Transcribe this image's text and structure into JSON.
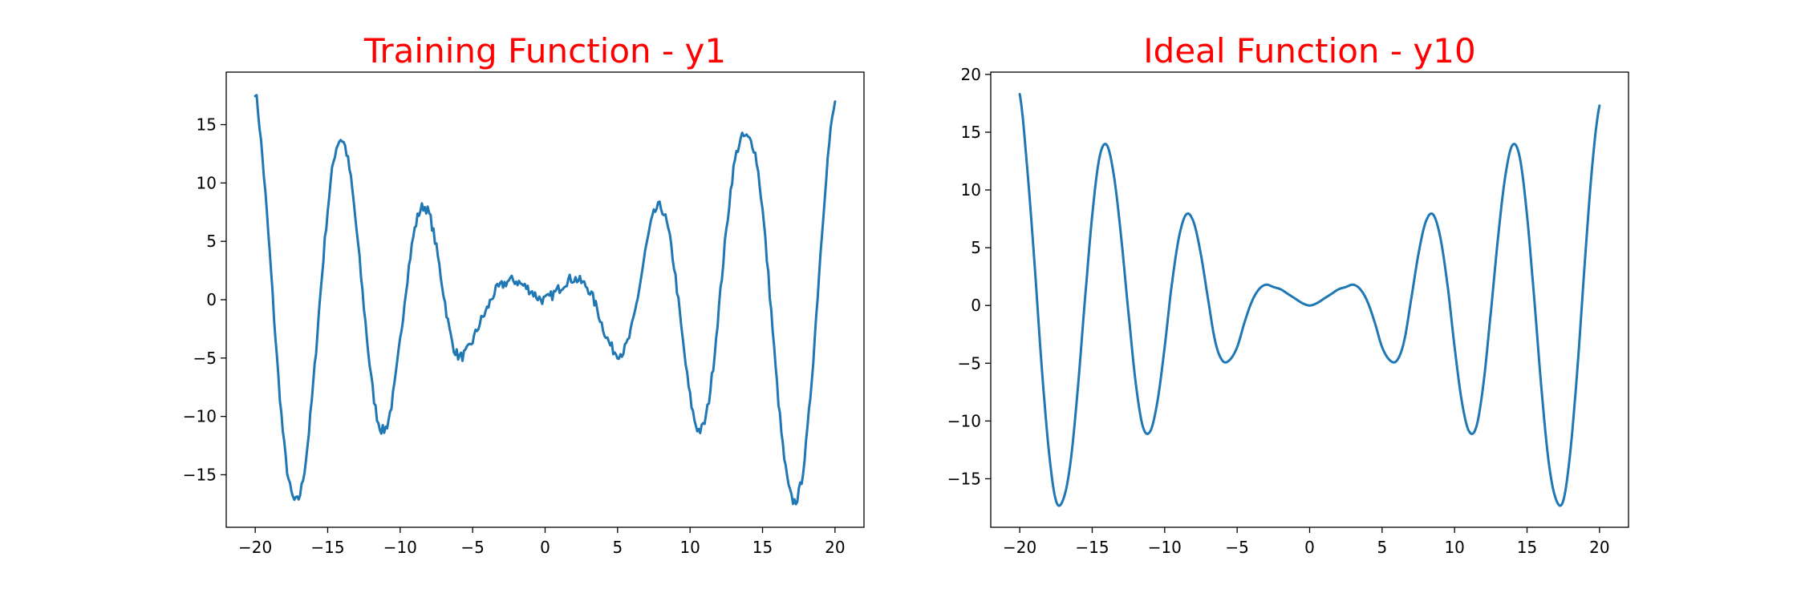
{
  "chart_data": [
    {
      "type": "line",
      "title": "Training Function - y1",
      "title_color": "#ff0000",
      "xlim": [
        -22,
        22
      ],
      "ylim": [
        -19.5,
        19.5
      ],
      "xticks": [
        -20,
        -15,
        -10,
        -5,
        0,
        5,
        10,
        15,
        20
      ],
      "xtick_labels": [
        "−20",
        "−15",
        "−10",
        "−5",
        "0",
        "5",
        "10",
        "15",
        "20"
      ],
      "yticks": [
        -15,
        -10,
        -5,
        0,
        5,
        10,
        15
      ],
      "ytick_labels": [
        "−15",
        "−10",
        "−5",
        "0",
        "5",
        "10",
        "15"
      ],
      "grid": false,
      "series": [
        {
          "color": "#1f77b4",
          "noisy": true,
          "x": [
            -20,
            -19.5,
            -19,
            -18.5,
            -18,
            -17.5,
            -17,
            -16.5,
            -16,
            -15.5,
            -15,
            -14.5,
            -14,
            -13.5,
            -13,
            -12.5,
            -12,
            -11.5,
            -11,
            -10.5,
            -10,
            -9.5,
            -9,
            -8.5,
            -8,
            -7.5,
            -7,
            -6.5,
            -6,
            -5.5,
            -5,
            -4.5,
            -4,
            -3.5,
            -3,
            -2.5,
            -2,
            -1.5,
            -1,
            -0.5,
            0,
            0.5,
            1,
            1.5,
            2,
            2.5,
            3,
            3.5,
            4,
            4.5,
            5,
            5.5,
            6,
            6.5,
            7,
            7.5,
            8,
            8.5,
            9,
            9.5,
            10,
            10.5,
            11,
            11.5,
            12,
            12.5,
            13,
            13.5,
            14,
            14.5,
            15,
            15.5,
            16,
            16.5,
            17,
            17.5,
            18,
            18.5,
            19,
            19.5,
            20
          ],
          "y": [
            17.9,
            12.1,
            4.0,
            -5.0,
            -12.5,
            -16.6,
            -17.0,
            -13.6,
            -7.3,
            0.5,
            7.7,
            12.5,
            13.7,
            11.2,
            5.9,
            -0.6,
            -6.7,
            -10.5,
            -11.0,
            -8.3,
            -3.5,
            1.9,
            6.0,
            7.9,
            7.3,
            4.4,
            0.5,
            -3.2,
            -4.8,
            -4.6,
            -3.5,
            -2.0,
            -0.8,
            0.6,
            1.2,
            1.6,
            1.6,
            1.2,
            0.8,
            0.2,
            0.0,
            0.4,
            1.0,
            1.6,
            1.8,
            1.5,
            0.9,
            -0.5,
            -2.4,
            -3.9,
            -4.6,
            -4.2,
            -2.3,
            1.0,
            4.7,
            7.3,
            7.9,
            5.9,
            1.9,
            -3.5,
            -8.3,
            -11.0,
            -10.5,
            -6.7,
            -0.6,
            5.9,
            11.2,
            13.7,
            13.8,
            12.5,
            7.7,
            0.5,
            -7.3,
            -13.6,
            -17.0,
            -16.6,
            -12.5,
            -5.0,
            4.0,
            12.1,
            16.8
          ]
        }
      ]
    },
    {
      "type": "line",
      "title": "Ideal Function - y10",
      "title_color": "#ff0000",
      "xlim": [
        -22,
        22
      ],
      "ylim": [
        -19.2,
        20.2
      ],
      "xticks": [
        -20,
        -15,
        -10,
        -5,
        0,
        5,
        10,
        15,
        20
      ],
      "xtick_labels": [
        "−20",
        "−15",
        "−10",
        "−5",
        "0",
        "5",
        "10",
        "15",
        "20"
      ],
      "yticks": [
        -15,
        -10,
        -5,
        0,
        5,
        10,
        15,
        20
      ],
      "ytick_labels": [
        "−15",
        "−10",
        "−5",
        "0",
        "5",
        "10",
        "15",
        "20"
      ],
      "grid": false,
      "series": [
        {
          "color": "#1f77b4",
          "noisy": false,
          "x": [
            -20,
            -19.5,
            -19,
            -18.5,
            -18,
            -17.5,
            -17,
            -16.5,
            -16,
            -15.5,
            -15,
            -14.5,
            -14,
            -13.5,
            -13,
            -12.5,
            -12,
            -11.5,
            -11,
            -10.5,
            -10,
            -9.5,
            -9,
            -8.5,
            -8,
            -7.5,
            -7,
            -6.5,
            -6,
            -5.5,
            -5,
            -4.5,
            -4,
            -3.5,
            -3,
            -2.5,
            -2,
            -1.5,
            -1,
            -0.5,
            0,
            0.5,
            1,
            1.5,
            2,
            2.5,
            3,
            3.5,
            4,
            4.5,
            5,
            5.5,
            6,
            6.5,
            7,
            7.5,
            8,
            8.5,
            9,
            9.5,
            10,
            10.5,
            11,
            11.5,
            12,
            12.5,
            13,
            13.5,
            14,
            14.5,
            15,
            15.5,
            16,
            16.5,
            17,
            17.5,
            18,
            18.5,
            19,
            19.5,
            20
          ],
          "y": [
            18.3,
            12.1,
            4.0,
            -5.0,
            -12.5,
            -16.9,
            -16.8,
            -13.6,
            -7.3,
            0.5,
            7.8,
            12.8,
            13.9,
            11.2,
            5.9,
            -0.6,
            -6.7,
            -10.5,
            -10.9,
            -8.3,
            -3.6,
            1.9,
            6.0,
            7.9,
            7.2,
            4.4,
            0.5,
            -3.2,
            -4.8,
            -4.7,
            -3.6,
            -1.5,
            0.3,
            1.4,
            1.8,
            1.6,
            1.4,
            1.0,
            0.6,
            0.2,
            0.0,
            0.2,
            0.6,
            1.0,
            1.4,
            1.6,
            1.8,
            1.4,
            0.3,
            -1.5,
            -3.6,
            -4.7,
            -4.8,
            -3.2,
            0.5,
            4.4,
            7.2,
            7.9,
            6.0,
            1.9,
            -3.6,
            -8.3,
            -10.9,
            -10.5,
            -6.7,
            -0.6,
            5.9,
            11.2,
            13.9,
            12.8,
            7.8,
            0.5,
            -7.3,
            -13.6,
            -16.8,
            -16.9,
            -12.5,
            -5.0,
            4.0,
            12.1,
            17.3
          ]
        }
      ]
    }
  ]
}
